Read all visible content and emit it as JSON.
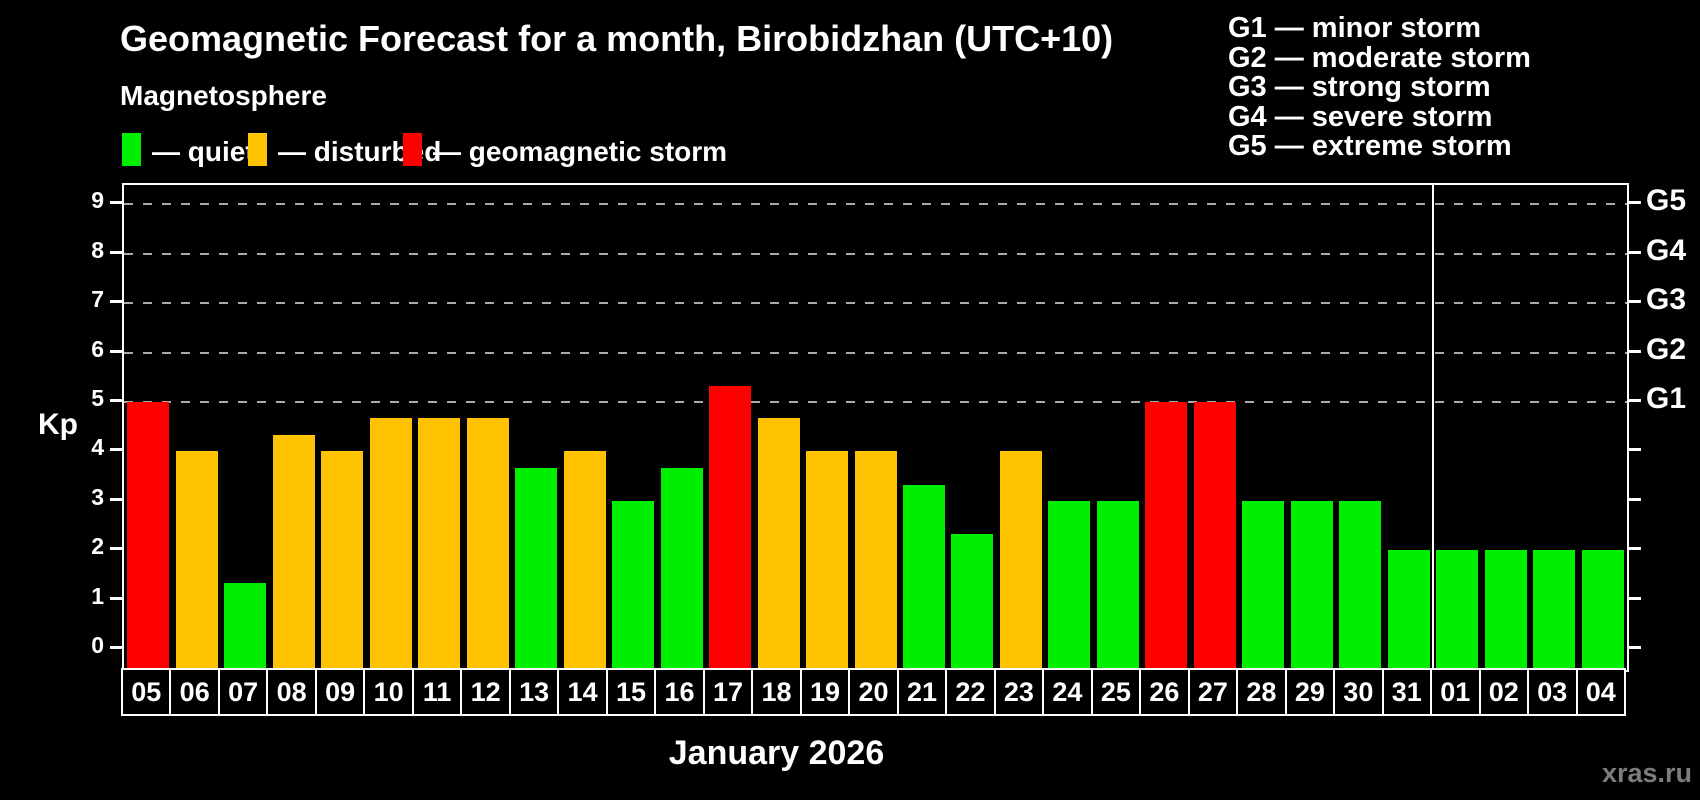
{
  "header": {
    "title": "Geomagnetic Forecast for a month, Birobidzhan (UTC+10)",
    "subtitle": "Magnetosphere"
  },
  "legend": [
    {
      "key": "quiet",
      "label": "— quiet",
      "color": "#00ee00"
    },
    {
      "key": "disturbed",
      "label": "— disturbed",
      "color": "#ffc200"
    },
    {
      "key": "storm",
      "label": "— geomagnetic storm",
      "color": "#ff0000"
    }
  ],
  "g_legend": [
    "G1 — minor storm",
    "G2 — moderate storm",
    "G3 — strong storm",
    "G4 — severe storm",
    "G5 — extreme storm"
  ],
  "watermark": "xras.ru",
  "chart_data": {
    "type": "bar",
    "title": "Geomagnetic Forecast for a month, Birobidzhan (UTC+10)",
    "xlabel": "January 2026",
    "ylabel": "Kp",
    "ylim": [
      0,
      9
    ],
    "y_ticks": [
      0,
      1,
      2,
      3,
      4,
      5,
      6,
      7,
      8,
      9
    ],
    "gridlines_at": [
      5,
      6,
      7,
      8,
      9
    ],
    "grid": true,
    "legend_position": "top",
    "right_axis_labels": [
      {
        "text": "G1",
        "kp": 5
      },
      {
        "text": "G2",
        "kp": 6
      },
      {
        "text": "G3",
        "kp": 7
      },
      {
        "text": "G4",
        "kp": 8
      },
      {
        "text": "G5",
        "kp": 9
      }
    ],
    "month_separator_after_index": 26,
    "categories": [
      "05",
      "06",
      "07",
      "08",
      "09",
      "10",
      "11",
      "12",
      "13",
      "14",
      "15",
      "16",
      "17",
      "18",
      "19",
      "20",
      "21",
      "22",
      "23",
      "24",
      "25",
      "26",
      "27",
      "28",
      "29",
      "30",
      "31",
      "01",
      "02",
      "03",
      "04"
    ],
    "values": [
      5.0,
      4.0,
      1.33,
      4.33,
      4.0,
      4.67,
      4.67,
      4.67,
      3.67,
      4.0,
      3.0,
      3.67,
      5.33,
      4.67,
      4.0,
      4.0,
      3.33,
      2.33,
      4.0,
      3.0,
      3.0,
      5.0,
      5.0,
      3.0,
      3.0,
      3.0,
      2.0,
      2.0,
      2.0,
      2.0,
      2.0
    ],
    "statuses": [
      "storm",
      "disturbed",
      "quiet",
      "disturbed",
      "disturbed",
      "disturbed",
      "disturbed",
      "disturbed",
      "quiet",
      "disturbed",
      "quiet",
      "quiet",
      "storm",
      "disturbed",
      "disturbed",
      "disturbed",
      "quiet",
      "quiet",
      "disturbed",
      "quiet",
      "quiet",
      "storm",
      "storm",
      "quiet",
      "quiet",
      "quiet",
      "quiet",
      "quiet",
      "quiet",
      "quiet",
      "quiet"
    ]
  }
}
